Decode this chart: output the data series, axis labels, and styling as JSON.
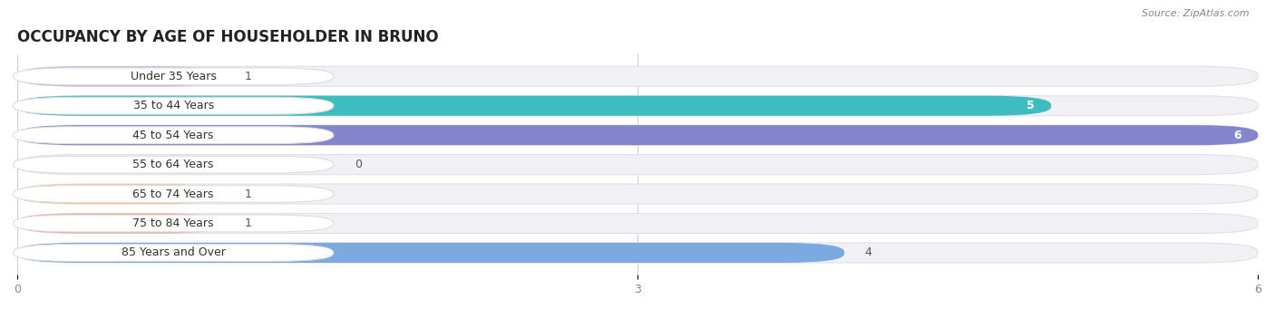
{
  "title": "OCCUPANCY BY AGE OF HOUSEHOLDER IN BRUNO",
  "source": "Source: ZipAtlas.com",
  "categories": [
    "Under 35 Years",
    "35 to 44 Years",
    "45 to 54 Years",
    "55 to 64 Years",
    "65 to 74 Years",
    "75 to 84 Years",
    "85 Years and Over"
  ],
  "values": [
    1,
    5,
    6,
    0,
    1,
    1,
    4
  ],
  "bar_colors": [
    "#c9b3d5",
    "#3dbdbd",
    "#8585cc",
    "#f599b0",
    "#f5c88a",
    "#f0a898",
    "#7aaae0"
  ],
  "bar_bg_color": "#f0f0f5",
  "bar_border_color": "#e0e0e8",
  "xlim": [
    0,
    6
  ],
  "xticks": [
    0,
    3,
    6
  ],
  "title_fontsize": 12,
  "label_fontsize": 9,
  "value_fontsize": 9,
  "background_color": "#ffffff",
  "label_pill_color": "#ffffff",
  "label_pill_border": "#dddddd"
}
